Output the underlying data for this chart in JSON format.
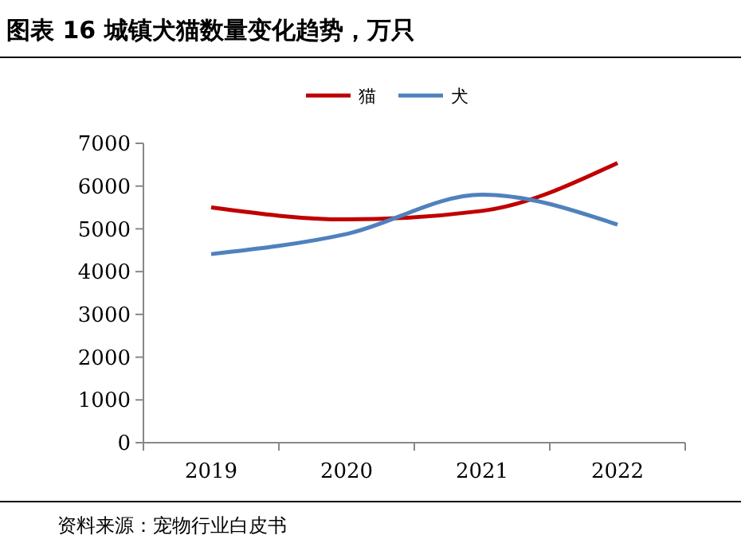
{
  "chart_data": {
    "type": "line",
    "title": "图表 16 城镇犬猫数量变化趋势，万只",
    "categories": [
      "2019",
      "2020",
      "2021",
      "2022"
    ],
    "series": [
      {
        "name": "猫",
        "color": "#c00000",
        "values": [
          5500,
          5220,
          5420,
          6540
        ]
      },
      {
        "name": "犬",
        "color": "#4f81bd",
        "values": [
          4410,
          4880,
          5800,
          5100
        ]
      }
    ],
    "ylim": [
      0,
      7000
    ],
    "yticks": [
      0,
      1000,
      2000,
      3000,
      4000,
      5000,
      6000,
      7000
    ],
    "grid": false,
    "legend": "top",
    "marker": "none",
    "line_style": "solid",
    "annotations": [
      "资料来源：宠物行业白皮书"
    ]
  }
}
